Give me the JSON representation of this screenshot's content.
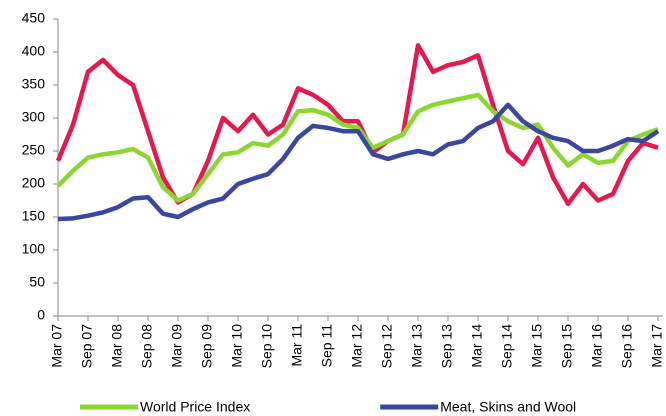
{
  "chart_data": {
    "type": "line",
    "categories": [
      "Mar 07",
      null,
      "Sep 07",
      null,
      "Mar 08",
      null,
      "Sep 08",
      null,
      "Mar 09",
      null,
      "Sep 09",
      null,
      "Mar 10",
      null,
      "Sep 10",
      null,
      "Mar 11",
      null,
      "Sep 11",
      null,
      "Mar 12",
      null,
      "Sep 12",
      null,
      "Mar 13",
      null,
      "Sep 13",
      null,
      "Mar 14",
      null,
      "Sep 14",
      null,
      "Mar 15",
      null,
      "Sep 15",
      null,
      "Mar 16",
      null,
      "Sep 16",
      null,
      "Mar 17"
    ],
    "series": [
      {
        "color": "#e8174e",
        "values": [
          235,
          290,
          370,
          388,
          365,
          350,
          280,
          210,
          172,
          185,
          235,
          300,
          280,
          305,
          275,
          290,
          345,
          335,
          320,
          295,
          295,
          248,
          265,
          275,
          410,
          370,
          380,
          385,
          395,
          320,
          250,
          230,
          270,
          210,
          170,
          200,
          175,
          185,
          235,
          262,
          255
        ]
      },
      {
        "name": "World Price Index",
        "color": "#8cd631",
        "values": [
          197,
          220,
          240,
          245,
          248,
          253,
          240,
          195,
          175,
          185,
          215,
          245,
          248,
          262,
          258,
          275,
          310,
          312,
          305,
          290,
          285,
          255,
          265,
          275,
          310,
          320,
          325,
          330,
          335,
          310,
          295,
          285,
          290,
          255,
          228,
          245,
          232,
          235,
          265,
          275,
          283
        ]
      },
      {
        "name": "Meat, Skins and Wool",
        "color": "#3a46a0",
        "values": [
          147,
          148,
          152,
          157,
          165,
          178,
          180,
          155,
          150,
          162,
          172,
          178,
          200,
          208,
          215,
          238,
          270,
          288,
          285,
          280,
          280,
          245,
          238,
          245,
          250,
          245,
          260,
          265,
          285,
          295,
          320,
          295,
          280,
          270,
          265,
          250,
          250,
          258,
          268,
          265,
          280
        ]
      }
    ],
    "ylim": [
      0,
      450
    ],
    "yticks": [
      0,
      50,
      100,
      150,
      200,
      250,
      300,
      350,
      400,
      450
    ]
  }
}
